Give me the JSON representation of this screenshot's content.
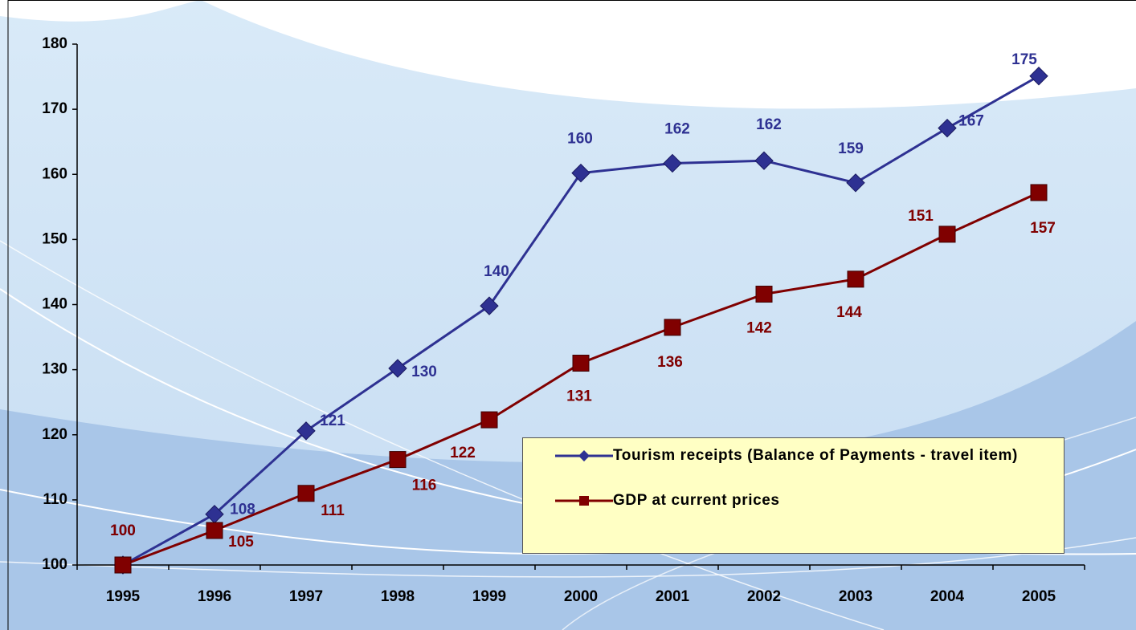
{
  "chart_data": {
    "type": "line",
    "categories": [
      "1995",
      "1996",
      "1997",
      "1998",
      "1999",
      "2000",
      "2001",
      "2002",
      "2003",
      "2004",
      "2005"
    ],
    "series": [
      {
        "name": "Tourism receipts (Balance of Payments - travel item)",
        "color": "#2e3192",
        "marker": "diamond",
        "values": [
          100,
          107.8,
          120.6,
          130.2,
          139.8,
          160.2,
          161.7,
          162.1,
          158.7,
          167.1,
          175.1
        ],
        "value_labels": [
          "100",
          "108",
          "121",
          "130",
          "140",
          "160",
          "162",
          "162",
          "159",
          "167",
          "175"
        ]
      },
      {
        "name": "GDP at current prices",
        "color": "#800000",
        "marker": "square",
        "values": [
          100,
          105.3,
          111.0,
          116.2,
          122.3,
          131.0,
          136.5,
          141.6,
          143.9,
          150.8,
          157.2
        ],
        "value_labels": [
          "100",
          "105",
          "111",
          "116",
          "122",
          "131",
          "136",
          "142",
          "144",
          "151",
          "157"
        ]
      }
    ],
    "ylim": [
      100,
      180
    ],
    "yticks": [
      100,
      110,
      120,
      130,
      140,
      150,
      160,
      170,
      180
    ],
    "grid": false
  }
}
